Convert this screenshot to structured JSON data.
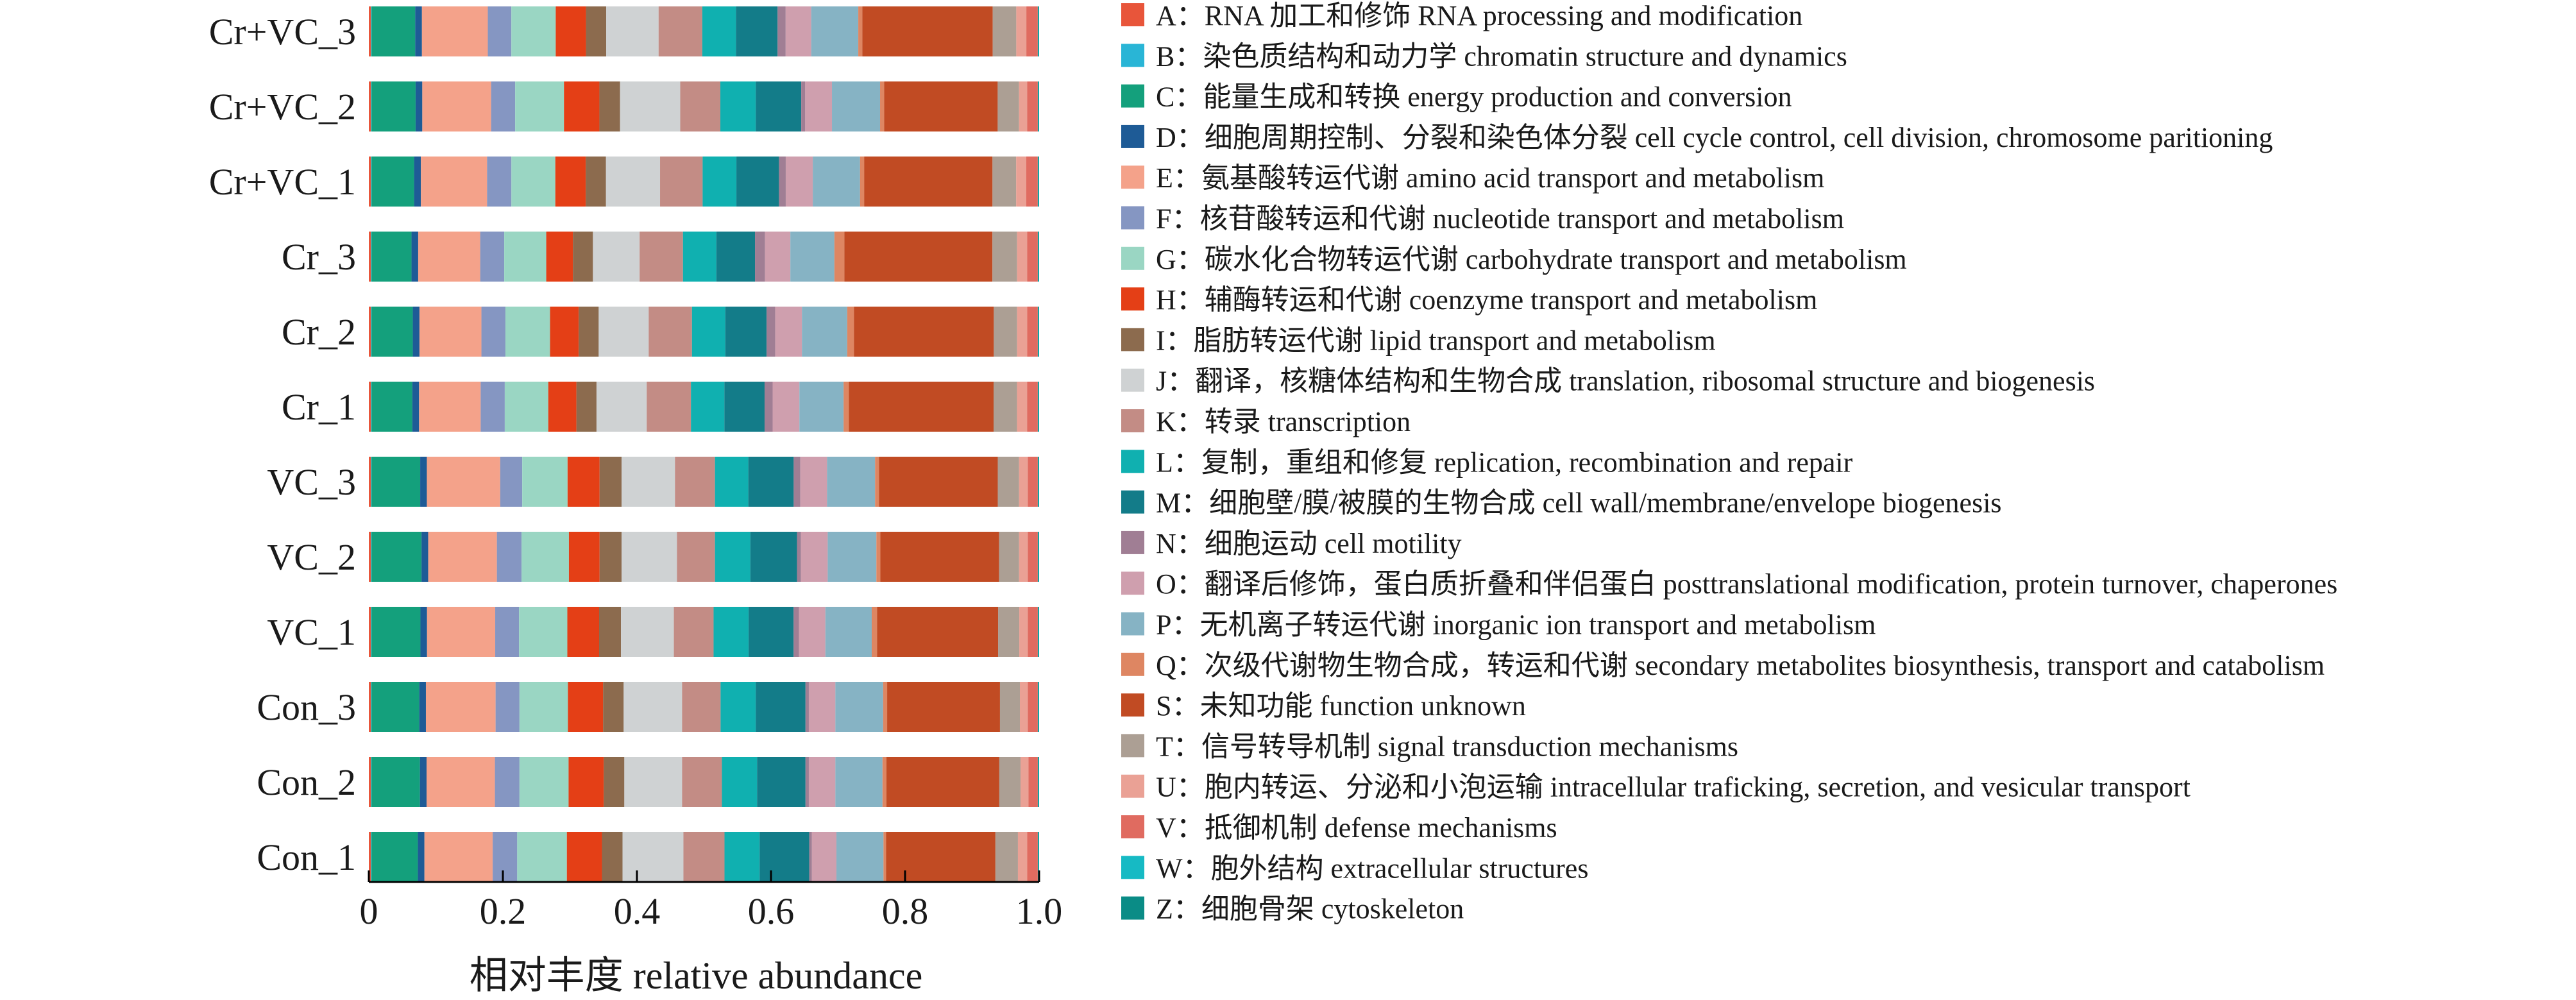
{
  "chart_data": {
    "type": "bar",
    "orientation": "horizontal",
    "stacked": true,
    "xlabel": "相对丰度 relative abundance",
    "xlim": [
      0,
      1
    ],
    "xticks": [
      "0",
      "0.2",
      "0.4",
      "0.6",
      "0.8",
      "1.0"
    ],
    "grid": false,
    "legend_position": "right",
    "categories": [
      "Cr+VC_3",
      "Cr+VC_2",
      "Cr+VC_1",
      "Cr_3",
      "Cr_2",
      "Cr_1",
      "VC_3",
      "VC_2",
      "VC_1",
      "Con_3",
      "Con_2",
      "Con_1"
    ],
    "series": [
      {
        "name": "A：RNA 加工和修饰 RNA processing and modification",
        "color": "#e8553a",
        "values": [
          0.003,
          0.003,
          0.003,
          0.003,
          0.003,
          0.003,
          0.003,
          0.003,
          0.003,
          0.003,
          0.003,
          0.003
        ]
      },
      {
        "name": "B：染色质结构和动力学 chromatin structure and dynamics",
        "color": "#29b5d6",
        "values": [
          0.001,
          0.001,
          0.001,
          0.001,
          0.001,
          0.001,
          0.001,
          0.001,
          0.001,
          0.001,
          0.001,
          0.001
        ]
      },
      {
        "name": "C：能量生成和转换 energy production and conversion",
        "color": "#14a07c",
        "values": [
          0.065,
          0.066,
          0.063,
          0.06,
          0.062,
          0.061,
          0.073,
          0.075,
          0.074,
          0.072,
          0.073,
          0.07
        ]
      },
      {
        "name": "D：细胞周期控制、分裂和染色体分裂 cell cycle control, cell division, chromosome paritioning",
        "color": "#1e5b96",
        "values": [
          0.01,
          0.01,
          0.01,
          0.01,
          0.01,
          0.01,
          0.01,
          0.01,
          0.01,
          0.01,
          0.01,
          0.01
        ]
      },
      {
        "name": "E：氨基酸转运代谢 amino acid transport and metabolism",
        "color": "#f4a28a",
        "values": [
          0.098,
          0.103,
          0.098,
          0.093,
          0.093,
          0.092,
          0.11,
          0.103,
          0.103,
          0.105,
          0.103,
          0.103
        ]
      },
      {
        "name": "F：核苷酸转运和代谢 nucleotide transport and metabolism",
        "color": "#8596c2",
        "values": [
          0.035,
          0.036,
          0.036,
          0.036,
          0.036,
          0.036,
          0.033,
          0.037,
          0.036,
          0.036,
          0.037,
          0.037
        ]
      },
      {
        "name": "G：碳水化合物转运代谢 carbohydrate transport and metabolism",
        "color": "#9ad6c3",
        "values": [
          0.066,
          0.073,
          0.065,
          0.063,
          0.067,
          0.065,
          0.068,
          0.071,
          0.073,
          0.073,
          0.074,
          0.075
        ]
      },
      {
        "name": "H：辅酶转运和代谢 coenzyme transport and metabolism",
        "color": "#e43f16",
        "values": [
          0.045,
          0.053,
          0.045,
          0.04,
          0.043,
          0.042,
          0.048,
          0.046,
          0.048,
          0.053,
          0.053,
          0.053
        ]
      },
      {
        "name": "I：脂肪转运代谢 lipid transport and metabolism",
        "color": "#8c6b4e",
        "values": [
          0.03,
          0.031,
          0.03,
          0.03,
          0.03,
          0.03,
          0.033,
          0.033,
          0.033,
          0.031,
          0.031,
          0.031
        ]
      },
      {
        "name": "J：翻译，核糖体结构和生物合成 translation, ribosomal structure and biogenesis",
        "color": "#cfd2d3",
        "values": [
          0.078,
          0.09,
          0.08,
          0.07,
          0.075,
          0.075,
          0.08,
          0.083,
          0.08,
          0.088,
          0.087,
          0.092
        ]
      },
      {
        "name": "K：转录 transcription",
        "color": "#c38c85",
        "values": [
          0.065,
          0.06,
          0.063,
          0.065,
          0.065,
          0.066,
          0.06,
          0.057,
          0.06,
          0.058,
          0.06,
          0.062
        ]
      },
      {
        "name": "L：复制，重组和修复 replication, recombination and repair",
        "color": "#10b0b0",
        "values": [
          0.05,
          0.053,
          0.05,
          0.05,
          0.05,
          0.05,
          0.05,
          0.053,
          0.053,
          0.053,
          0.053,
          0.053
        ]
      },
      {
        "name": "M：细胞壁/膜/被膜的生物合成 cell wall/membrane/envelope biogenesis",
        "color": "#137c89",
        "values": [
          0.062,
          0.068,
          0.063,
          0.058,
          0.062,
          0.06,
          0.068,
          0.07,
          0.068,
          0.075,
          0.073,
          0.075
        ]
      },
      {
        "name": "N：细胞运动 cell motility",
        "color": "#a07e94",
        "values": [
          0.012,
          0.006,
          0.01,
          0.015,
          0.013,
          0.012,
          0.01,
          0.006,
          0.008,
          0.005,
          0.005,
          0.004
        ]
      },
      {
        "name": "O：翻译后修饰，蛋白质折叠和伴侣蛋白 posttranslational modification, protein turnover, chaperones",
        "color": "#cf9fae",
        "values": [
          0.038,
          0.04,
          0.04,
          0.038,
          0.04,
          0.04,
          0.04,
          0.04,
          0.04,
          0.04,
          0.04,
          0.037
        ]
      },
      {
        "name": "P：无机离子转运代谢 inorganic ion transport and metabolism",
        "color": "#86b3c4",
        "values": [
          0.07,
          0.072,
          0.07,
          0.066,
          0.068,
          0.066,
          0.072,
          0.073,
          0.07,
          0.072,
          0.071,
          0.071
        ]
      },
      {
        "name": "Q：次级代谢物生物合成，转运和代谢 secondary metabolites biosynthesis, transport and catabolism",
        "color": "#de8662",
        "values": [
          0.006,
          0.006,
          0.006,
          0.015,
          0.01,
          0.008,
          0.006,
          0.006,
          0.008,
          0.006,
          0.006,
          0.004
        ]
      },
      {
        "name": "S：未知功能 function unknown",
        "color": "#c14b23",
        "values": [
          0.194,
          0.17,
          0.19,
          0.222,
          0.21,
          0.216,
          0.178,
          0.178,
          0.183,
          0.17,
          0.17,
          0.165
        ]
      },
      {
        "name": "T：信号转导机制 signal transduction mechanisms",
        "color": "#ac9f94",
        "values": [
          0.035,
          0.032,
          0.035,
          0.037,
          0.035,
          0.035,
          0.032,
          0.03,
          0.032,
          0.03,
          0.032,
          0.034
        ]
      },
      {
        "name": "U：胞内转运、分泌和小泡运输 intracellular traficking, secretion, and vesicular transport",
        "color": "#eaa195",
        "values": [
          0.015,
          0.012,
          0.015,
          0.015,
          0.015,
          0.015,
          0.013,
          0.013,
          0.013,
          0.012,
          0.012,
          0.014
        ]
      },
      {
        "name": "V：抵御机制 defense mechanisms",
        "color": "#e06b60",
        "values": [
          0.017,
          0.016,
          0.017,
          0.016,
          0.016,
          0.016,
          0.015,
          0.015,
          0.015,
          0.015,
          0.014,
          0.016
        ]
      },
      {
        "name": "W：胞外结构 extracellular structures",
        "color": "#16bac4",
        "values": [
          0.001,
          0.001,
          0.001,
          0.001,
          0.001,
          0.001,
          0.001,
          0.001,
          0.001,
          0.001,
          0.001,
          0.001
        ]
      },
      {
        "name": "Z：细胞骨架 cytoskeleton",
        "color": "#0a8c86",
        "values": [
          0.001,
          0.001,
          0.001,
          0.001,
          0.001,
          0.001,
          0.001,
          0.001,
          0.001,
          0.001,
          0.001,
          0.001
        ]
      }
    ]
  }
}
